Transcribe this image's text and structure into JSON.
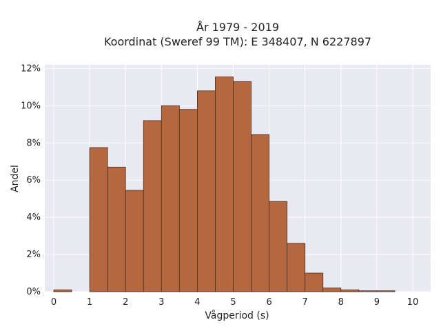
{
  "chart_data": {
    "type": "bar",
    "title_line1": "År 1979 - 2019",
    "title_line2": "Koordinat (Sweref 99 TM): E 348407, N 6227897",
    "xlabel": "Vågperiod (s)",
    "ylabel": "Andel",
    "xlim": [
      -0.25,
      10.5
    ],
    "ylim": [
      0,
      12.2
    ],
    "x_ticks": [
      0,
      1,
      2,
      3,
      4,
      5,
      6,
      7,
      8,
      9,
      10
    ],
    "x_tick_labels": [
      "0",
      "1",
      "2",
      "3",
      "4",
      "5",
      "6",
      "7",
      "8",
      "9",
      "10"
    ],
    "y_ticks": [
      0,
      2,
      4,
      6,
      8,
      10,
      12
    ],
    "y_tick_labels": [
      "0%",
      "2%",
      "4%",
      "6%",
      "8%",
      "10%",
      "12%"
    ],
    "bin_width": 0.5,
    "bin_starts": [
      0,
      0.5,
      1,
      1.5,
      2,
      2.5,
      3,
      3.5,
      4,
      4.5,
      5,
      5.5,
      6,
      6.5,
      7,
      7.5,
      8,
      8.5,
      9,
      9.5
    ],
    "values": [
      0.1,
      0,
      7.75,
      6.7,
      5.45,
      9.2,
      10.0,
      9.8,
      10.8,
      11.55,
      11.3,
      8.45,
      4.85,
      2.6,
      1.0,
      0.2,
      0.1,
      0.05,
      0.05,
      0
    ],
    "unit": "%",
    "grid": true,
    "colors": {
      "bar_fill": "#b5673f",
      "bar_stroke": "#4a2e22",
      "plot_background": "#e9e9f2",
      "grid": "#ffffff"
    }
  }
}
